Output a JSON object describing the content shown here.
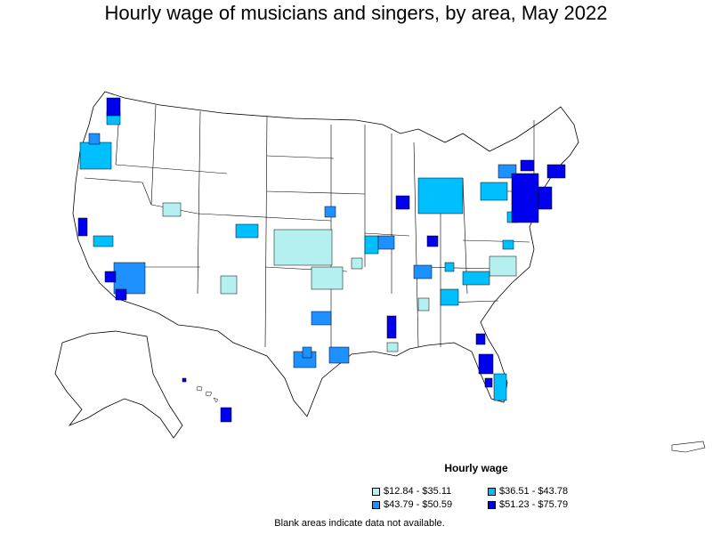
{
  "title": "Hourly wage of musicians and singers, by area, May 2022",
  "legend": {
    "title": "Hourly wage",
    "items": [
      {
        "label": "$12.84 - $35.11",
        "color": "#b3f0ef"
      },
      {
        "label": "$36.51 - $43.78",
        "color": "#00bfff"
      },
      {
        "label": "$43.79 - $50.59",
        "color": "#1e90ff"
      },
      {
        "label": "$51.23 - $75.79",
        "color": "#0000ee"
      }
    ]
  },
  "note": "Blank areas indicate data not available."
}
